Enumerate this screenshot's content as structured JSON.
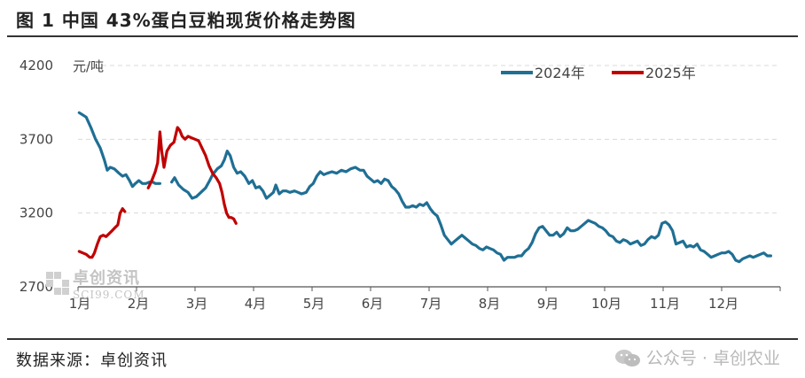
{
  "header": {
    "title": "图 1  中国 43%蛋白豆粕现货价格走势图"
  },
  "footer": {
    "source": "数据来源：卓创资讯",
    "watermark": "公众号 · 卓创农业"
  },
  "watermark_logo": {
    "cn": "卓创资讯",
    "en": "SCI99.COM"
  },
  "chart_data": {
    "type": "line",
    "title": "中国 43%蛋白豆粕现货价格走势图",
    "ylabel": "元/吨",
    "ylim": [
      2700,
      4200
    ],
    "yticks": [
      2700,
      3200,
      3700,
      4200
    ],
    "xlim": [
      0,
      12
    ],
    "xticks": [
      "1月",
      "2月",
      "3月",
      "4月",
      "5月",
      "6月",
      "7月",
      "8月",
      "9月",
      "10月",
      "11月",
      "12月"
    ],
    "grid": "horizontal dashed",
    "legend_position": "top-right",
    "series": [
      {
        "name": "2024年",
        "color": "#1f6f94",
        "points": [
          [
            0.02,
            3880
          ],
          [
            0.08,
            3865
          ],
          [
            0.14,
            3850
          ],
          [
            0.22,
            3780
          ],
          [
            0.3,
            3700
          ],
          [
            0.38,
            3640
          ],
          [
            0.45,
            3560
          ],
          [
            0.5,
            3490
          ],
          [
            0.55,
            3510
          ],
          [
            0.62,
            3500
          ],
          [
            0.7,
            3470
          ],
          [
            0.76,
            3450
          ],
          [
            0.82,
            3460
          ],
          [
            0.88,
            3420
          ],
          [
            0.93,
            3380
          ],
          [
            0.98,
            3400
          ],
          [
            1.04,
            3420
          ],
          [
            1.1,
            3400
          ],
          [
            1.16,
            3400
          ],
          [
            1.22,
            3410
          ],
          [
            1.28,
            3410
          ],
          [
            1.32,
            3400
          ],
          [
            1.4,
            3400
          ],
          [
            1.6,
            3410
          ],
          [
            1.65,
            3440
          ],
          [
            1.72,
            3390
          ],
          [
            1.8,
            3360
          ],
          [
            1.88,
            3340
          ],
          [
            1.95,
            3300
          ],
          [
            2.02,
            3310
          ],
          [
            2.1,
            3340
          ],
          [
            2.18,
            3370
          ],
          [
            2.25,
            3420
          ],
          [
            2.3,
            3460
          ],
          [
            2.38,
            3500
          ],
          [
            2.45,
            3520
          ],
          [
            2.5,
            3560
          ],
          [
            2.55,
            3620
          ],
          [
            2.6,
            3590
          ],
          [
            2.66,
            3510
          ],
          [
            2.72,
            3470
          ],
          [
            2.78,
            3480
          ],
          [
            2.85,
            3450
          ],
          [
            2.92,
            3400
          ],
          [
            2.98,
            3420
          ],
          [
            3.04,
            3370
          ],
          [
            3.1,
            3380
          ],
          [
            3.16,
            3350
          ],
          [
            3.22,
            3300
          ],
          [
            3.28,
            3320
          ],
          [
            3.34,
            3340
          ],
          [
            3.38,
            3390
          ],
          [
            3.44,
            3330
          ],
          [
            3.5,
            3350
          ],
          [
            3.56,
            3350
          ],
          [
            3.62,
            3340
          ],
          [
            3.7,
            3350
          ],
          [
            3.76,
            3340
          ],
          [
            3.82,
            3330
          ],
          [
            3.9,
            3340
          ],
          [
            3.96,
            3380
          ],
          [
            4.02,
            3400
          ],
          [
            4.08,
            3450
          ],
          [
            4.14,
            3480
          ],
          [
            4.2,
            3460
          ],
          [
            4.26,
            3470
          ],
          [
            4.34,
            3480
          ],
          [
            4.42,
            3470
          ],
          [
            4.5,
            3490
          ],
          [
            4.58,
            3480
          ],
          [
            4.66,
            3500
          ],
          [
            4.74,
            3510
          ],
          [
            4.82,
            3490
          ],
          [
            4.88,
            3490
          ],
          [
            4.94,
            3450
          ],
          [
            5.0,
            3430
          ],
          [
            5.06,
            3410
          ],
          [
            5.12,
            3420
          ],
          [
            5.18,
            3400
          ],
          [
            5.24,
            3430
          ],
          [
            5.3,
            3420
          ],
          [
            5.36,
            3380
          ],
          [
            5.42,
            3360
          ],
          [
            5.48,
            3330
          ],
          [
            5.54,
            3280
          ],
          [
            5.6,
            3240
          ],
          [
            5.66,
            3240
          ],
          [
            5.72,
            3250
          ],
          [
            5.78,
            3240
          ],
          [
            5.84,
            3260
          ],
          [
            5.9,
            3250
          ],
          [
            5.96,
            3270
          ],
          [
            6.02,
            3230
          ],
          [
            6.08,
            3200
          ],
          [
            6.14,
            3180
          ],
          [
            6.2,
            3120
          ],
          [
            6.26,
            3050
          ],
          [
            6.32,
            3020
          ],
          [
            6.38,
            2990
          ],
          [
            6.44,
            3010
          ],
          [
            6.5,
            3030
          ],
          [
            6.56,
            3050
          ],
          [
            6.62,
            3030
          ],
          [
            6.68,
            3010
          ],
          [
            6.74,
            2990
          ],
          [
            6.8,
            2980
          ],
          [
            6.86,
            2960
          ],
          [
            6.92,
            2950
          ],
          [
            6.98,
            2970
          ],
          [
            7.04,
            2960
          ],
          [
            7.1,
            2950
          ],
          [
            7.16,
            2930
          ],
          [
            7.22,
            2920
          ],
          [
            7.28,
            2880
          ],
          [
            7.34,
            2900
          ],
          [
            7.4,
            2900
          ],
          [
            7.46,
            2900
          ],
          [
            7.52,
            2910
          ],
          [
            7.58,
            2910
          ],
          [
            7.64,
            2940
          ],
          [
            7.7,
            2960
          ],
          [
            7.76,
            3000
          ],
          [
            7.82,
            3060
          ],
          [
            7.88,
            3100
          ],
          [
            7.94,
            3110
          ],
          [
            8.0,
            3080
          ],
          [
            8.06,
            3050
          ],
          [
            8.12,
            3050
          ],
          [
            8.18,
            3070
          ],
          [
            8.24,
            3040
          ],
          [
            8.3,
            3060
          ],
          [
            8.36,
            3100
          ],
          [
            8.42,
            3080
          ],
          [
            8.48,
            3080
          ],
          [
            8.54,
            3090
          ],
          [
            8.6,
            3110
          ],
          [
            8.66,
            3130
          ],
          [
            8.72,
            3150
          ],
          [
            8.78,
            3140
          ],
          [
            8.84,
            3130
          ],
          [
            8.9,
            3110
          ],
          [
            8.96,
            3100
          ],
          [
            9.02,
            3080
          ],
          [
            9.08,
            3050
          ],
          [
            9.14,
            3040
          ],
          [
            9.2,
            3010
          ],
          [
            9.26,
            3000
          ],
          [
            9.32,
            3020
          ],
          [
            9.38,
            3010
          ],
          [
            9.44,
            2990
          ],
          [
            9.5,
            3000
          ],
          [
            9.56,
            3010
          ],
          [
            9.62,
            2980
          ],
          [
            9.68,
            2990
          ],
          [
            9.74,
            3020
          ],
          [
            9.8,
            3040
          ],
          [
            9.86,
            3030
          ],
          [
            9.92,
            3050
          ],
          [
            9.98,
            3130
          ],
          [
            10.04,
            3140
          ],
          [
            10.1,
            3120
          ],
          [
            10.16,
            3080
          ],
          [
            10.22,
            2990
          ],
          [
            10.28,
            3000
          ],
          [
            10.34,
            3010
          ],
          [
            10.4,
            2970
          ],
          [
            10.46,
            2980
          ],
          [
            10.52,
            2970
          ],
          [
            10.58,
            2990
          ],
          [
            10.64,
            2950
          ],
          [
            10.7,
            2940
          ],
          [
            10.76,
            2920
          ],
          [
            10.82,
            2900
          ],
          [
            10.88,
            2910
          ],
          [
            10.94,
            2920
          ],
          [
            11.0,
            2930
          ],
          [
            11.06,
            2930
          ],
          [
            11.12,
            2940
          ],
          [
            11.18,
            2920
          ],
          [
            11.24,
            2880
          ],
          [
            11.3,
            2870
          ],
          [
            11.36,
            2890
          ],
          [
            11.42,
            2900
          ],
          [
            11.48,
            2910
          ],
          [
            11.54,
            2900
          ],
          [
            11.6,
            2910
          ],
          [
            11.66,
            2920
          ],
          [
            11.72,
            2930
          ],
          [
            11.78,
            2910
          ],
          [
            11.84,
            2910
          ]
        ]
      },
      {
        "name": "2025年",
        "color": "#c00000",
        "points": [
          [
            0.02,
            2940
          ],
          [
            0.08,
            2930
          ],
          [
            0.14,
            2920
          ],
          [
            0.2,
            2900
          ],
          [
            0.24,
            2900
          ],
          [
            0.28,
            2930
          ],
          [
            0.33,
            2990
          ],
          [
            0.38,
            3040
          ],
          [
            0.43,
            3050
          ],
          [
            0.48,
            3040
          ],
          [
            0.53,
            3060
          ],
          [
            0.58,
            3080
          ],
          [
            0.63,
            3100
          ],
          [
            0.68,
            3120
          ],
          [
            0.72,
            3200
          ],
          [
            0.76,
            3230
          ],
          [
            0.8,
            3210
          ],
          [
            1.2,
            3370
          ],
          [
            1.26,
            3420
          ],
          [
            1.32,
            3480
          ],
          [
            1.36,
            3540
          ],
          [
            1.4,
            3750
          ],
          [
            1.43,
            3620
          ],
          [
            1.47,
            3510
          ],
          [
            1.52,
            3620
          ],
          [
            1.58,
            3660
          ],
          [
            1.64,
            3680
          ],
          [
            1.7,
            3780
          ],
          [
            1.74,
            3760
          ],
          [
            1.78,
            3720
          ],
          [
            1.83,
            3700
          ],
          [
            1.88,
            3720
          ],
          [
            1.94,
            3710
          ],
          [
            2.0,
            3700
          ],
          [
            2.06,
            3690
          ],
          [
            2.12,
            3640
          ],
          [
            2.18,
            3590
          ],
          [
            2.24,
            3520
          ],
          [
            2.3,
            3470
          ],
          [
            2.36,
            3440
          ],
          [
            2.42,
            3400
          ],
          [
            2.46,
            3340
          ],
          [
            2.5,
            3260
          ],
          [
            2.54,
            3200
          ],
          [
            2.58,
            3170
          ],
          [
            2.62,
            3170
          ],
          [
            2.66,
            3160
          ],
          [
            2.7,
            3130
          ]
        ]
      }
    ]
  }
}
